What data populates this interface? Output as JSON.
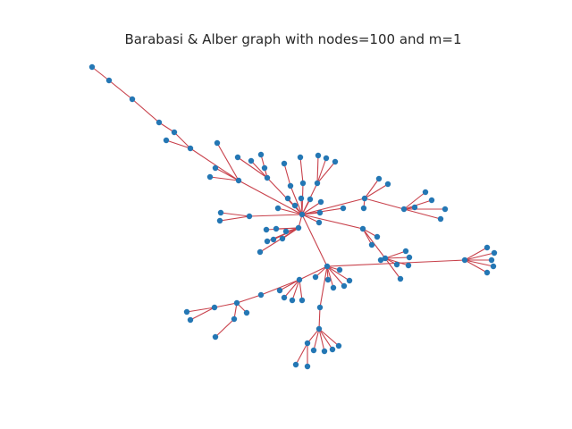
{
  "title": "Barabasi & Alber graph with nodes=100 and m=1",
  "colors": {
    "edge": "#c8414b",
    "node": "#2477b4",
    "background": "#ffffff",
    "title": "#262626"
  },
  "graph": {
    "type": "network",
    "model": "barabasi-albert",
    "node_count": 100,
    "m": 1
  }
}
